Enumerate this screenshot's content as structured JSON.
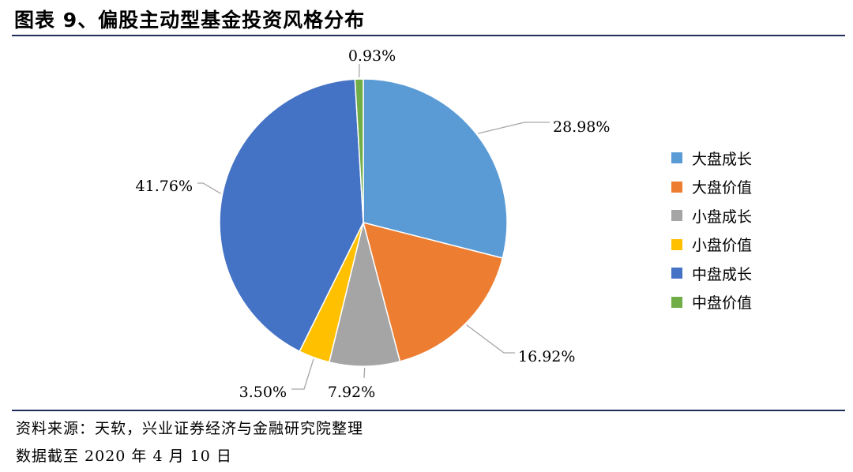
{
  "header": {
    "title": "图表 9、偏股主动型基金投资风格分布"
  },
  "chart_data": {
    "type": "pie",
    "title": "",
    "slices": [
      {
        "label": "大盘成长",
        "value": 28.98,
        "display": "28.98%",
        "color": "#5b9bd5"
      },
      {
        "label": "大盘价值",
        "value": 16.92,
        "display": "16.92%",
        "color": "#ed7d31"
      },
      {
        "label": "小盘成长",
        "value": 7.92,
        "display": "7.92%",
        "color": "#a5a5a5"
      },
      {
        "label": "小盘价值",
        "value": 3.5,
        "display": "3.50%",
        "color": "#ffc000"
      },
      {
        "label": "中盘成长",
        "value": 41.76,
        "display": "41.76%",
        "color": "#4472c4"
      },
      {
        "label": "中盘价值",
        "value": 0.93,
        "display": "0.93%",
        "color": "#70ad47"
      }
    ],
    "legend_position": "right"
  },
  "footer": {
    "source": "资料来源：天软，兴业证券经济与金融研究院整理",
    "date_note": "数据截至 2020 年 4 月 10 日"
  }
}
